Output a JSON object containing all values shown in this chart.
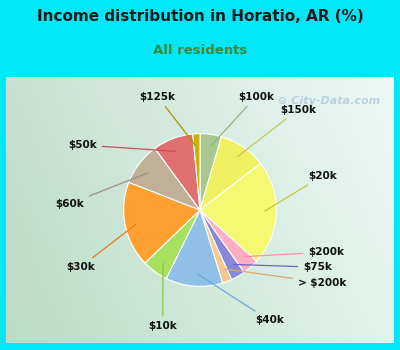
{
  "title": "Income distribution in Horatio, AR (%)",
  "subtitle": "All residents",
  "title_color": "#1a1a1a",
  "subtitle_color": "#3a8a3a",
  "background_outer": "#00e8f8",
  "watermark": "City-Data.com",
  "labels": [
    "$100k",
    "$150k",
    "$20k",
    "$200k",
    "$75k",
    "> $200k",
    "$40k",
    "$10k",
    "$30k",
    "$60k",
    "$50k",
    "$125k"
  ],
  "values": [
    4.5,
    10.0,
    22.0,
    3.5,
    3.0,
    2.0,
    12.0,
    5.5,
    18.0,
    9.0,
    8.5,
    1.5
  ],
  "colors": [
    "#a8c890",
    "#f5f870",
    "#f5f870",
    "#ffb0c0",
    "#8888d8",
    "#f0c090",
    "#90c8f0",
    "#a8e060",
    "#ffa030",
    "#c0b098",
    "#e07070",
    "#c8b400"
  ],
  "slice_colors": [
    "#a8c890",
    "#f0f060",
    "#f5f870",
    "#ffb0c0",
    "#8888d8",
    "#f5c890",
    "#90c0e8",
    "#a8e060",
    "#ffa030",
    "#c0b098",
    "#e07070",
    "#c8b400"
  ],
  "label_line_colors": [
    "#90b880",
    "#c8c860",
    "#c8c840",
    "#ff90a8",
    "#6868c0",
    "#d8a870",
    "#70a8d8",
    "#88c840",
    "#e08020",
    "#a09080",
    "#c05060",
    "#a09400"
  ],
  "figsize": [
    4.0,
    3.5
  ],
  "dpi": 100
}
